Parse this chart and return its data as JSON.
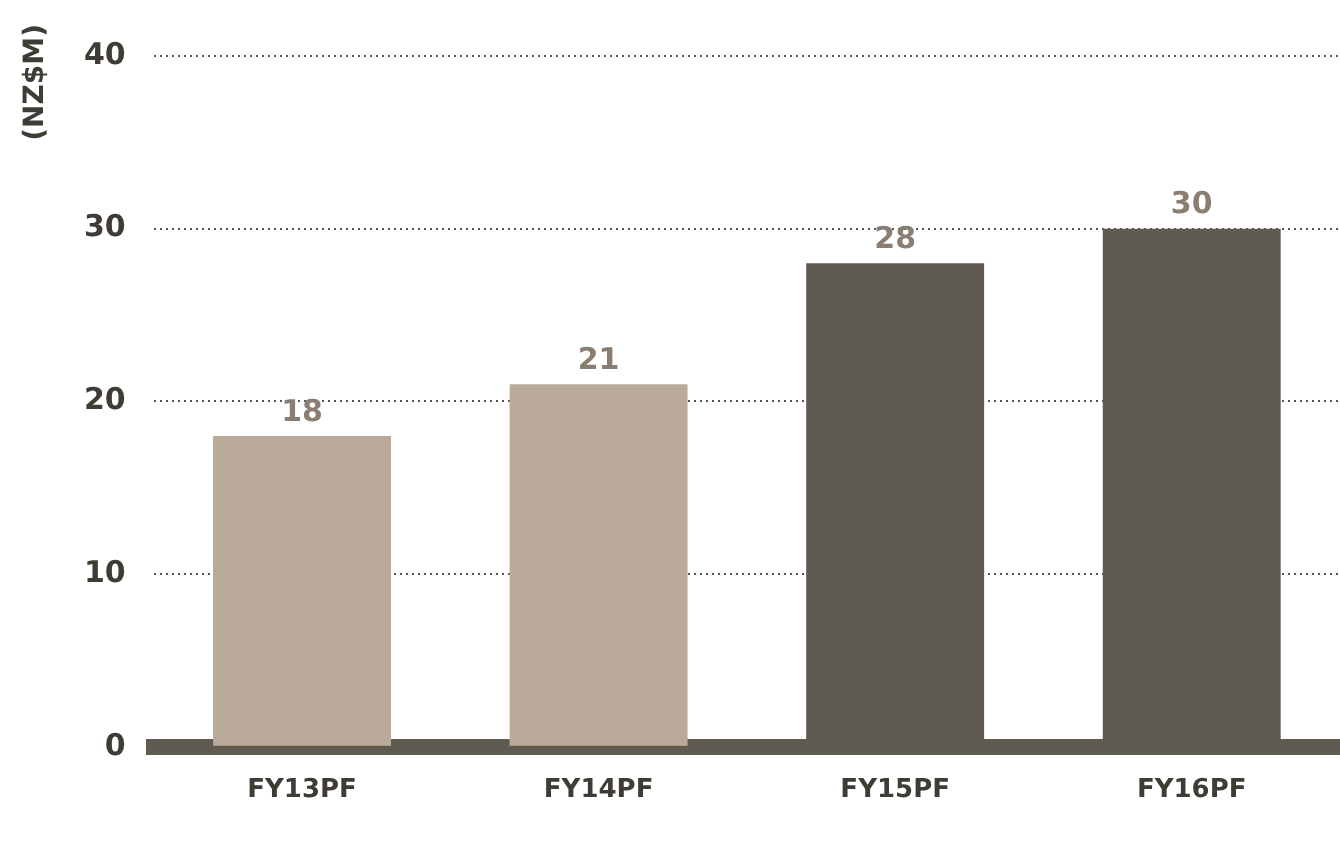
{
  "chart_data": {
    "type": "bar",
    "ylabel": "(NZ$M)",
    "categories": [
      "FY13PF",
      "FY14PF",
      "FY15PF",
      "FY16PF"
    ],
    "values": [
      18,
      21,
      28,
      30
    ],
    "colors": [
      "#b9aa9a",
      "#b9aa9a",
      "#5f5b51",
      "#5f5b51"
    ],
    "ylim": [
      0,
      40
    ],
    "yticks": [
      0,
      10,
      20,
      30,
      40
    ],
    "grid": "y",
    "data_labels": true,
    "legend": false
  }
}
